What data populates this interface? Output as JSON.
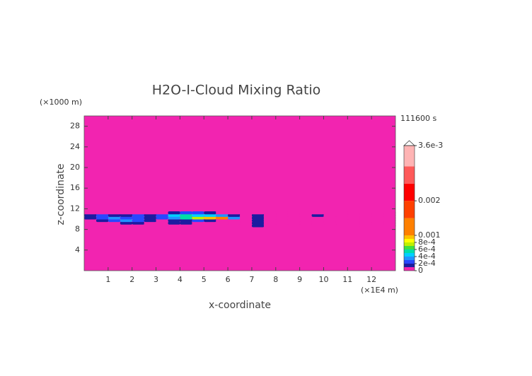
{
  "chart_data": {
    "type": "contour",
    "title": "H2O-I-Cloud Mixing Ratio",
    "y_unit": "(×1000 m)",
    "x_unit": "(×1E4 m)",
    "time_label": "111600 s",
    "xlabel": "x-coordinate",
    "ylabel": "z-coordinate",
    "xlim": [
      0,
      13
    ],
    "ylim": [
      0,
      30
    ],
    "xticks": [
      1,
      2,
      3,
      4,
      5,
      6,
      7,
      8,
      9,
      10,
      11,
      12
    ],
    "yticks": [
      4,
      8,
      12,
      16,
      20,
      24,
      28
    ],
    "x": [
      0.25,
      0.75,
      1.25,
      1.75,
      2.25,
      2.75,
      3.25,
      3.75,
      4.25,
      4.75,
      5.25,
      5.75,
      6.25,
      6.75,
      7.25,
      7.75,
      8.25,
      8.75,
      9.25,
      9.75,
      10.25,
      10.75,
      11.25,
      11.75,
      12.25,
      12.75
    ],
    "y": [
      8.75,
      9.25,
      9.75,
      10.25,
      10.75,
      11.25
    ],
    "z": [
      [
        0,
        0,
        0,
        0,
        0,
        0,
        0,
        0,
        0,
        0,
        0,
        0,
        0,
        0,
        0.00012,
        0,
        0,
        0,
        0,
        0,
        0,
        0,
        0,
        0,
        0,
        0
      ],
      [
        0,
        0,
        0,
        0.00018,
        0.00012,
        0,
        0,
        0.00013,
        0.00012,
        0,
        0,
        0,
        0,
        0,
        0.00015,
        0,
        0,
        0,
        0,
        0,
        0,
        0,
        0,
        0,
        0,
        0
      ],
      [
        0,
        0.00012,
        0.00025,
        0.0003,
        0.00022,
        0.00012,
        0,
        0.00015,
        0.00018,
        0.0002,
        0.00012,
        0,
        0,
        0,
        0.00015,
        0,
        0,
        0,
        0,
        0,
        0,
        0,
        0,
        0,
        0,
        0
      ],
      [
        0.00015,
        0.0002,
        0.0003,
        0.00025,
        0.0002,
        0.00015,
        0.0002,
        0.0003,
        0.0005,
        0.0007,
        0.00095,
        0.0011,
        0.0003,
        0,
        0.00012,
        0,
        0,
        0,
        0,
        0,
        0,
        0,
        0,
        0,
        0,
        0
      ],
      [
        0.00015,
        0.0002,
        0.00018,
        0.00015,
        0.0002,
        0.00015,
        0.00025,
        0.0004,
        0.0005,
        0.00045,
        0.0004,
        0.0003,
        0.00015,
        0,
        0.00012,
        0,
        0,
        0,
        0,
        0.00015,
        0,
        0,
        0,
        0,
        0,
        0
      ],
      [
        0,
        0,
        0,
        0,
        0,
        0,
        0,
        0.00015,
        0.00025,
        0.0002,
        0.00012,
        0,
        0,
        0,
        0,
        0,
        0,
        0,
        0,
        0,
        0,
        0,
        0,
        0,
        0,
        0
      ]
    ],
    "levels": [
      0,
      0.0001,
      0.0002,
      0.0003,
      0.0004,
      0.0005,
      0.0006,
      0.0007,
      0.0008,
      0.0009,
      0.001,
      0.0015,
      0.002,
      0.0025,
      0.003,
      0.0036
    ],
    "colors": [
      "#f224b0",
      "#1c1ca0",
      "#2848ff",
      "#2094ff",
      "#00d0ff",
      "#00e0a8",
      "#40e040",
      "#c0f000",
      "#ffff00",
      "#ffc000",
      "#ff8000",
      "#ff4000",
      "#ff0000",
      "#ff5a5a",
      "#ffb4b4"
    ],
    "colorbar_ticks": [
      0,
      {
        "value": 0.0002,
        "label": "2e-4"
      },
      {
        "value": 0.0004,
        "label": "4e-4"
      },
      {
        "value": 0.0006,
        "label": "6e-4"
      },
      {
        "value": 0.0008,
        "label": "8e-4"
      },
      0.001,
      0.002,
      {
        "value": 0.0036,
        "label": "3.6e-3"
      }
    ]
  }
}
